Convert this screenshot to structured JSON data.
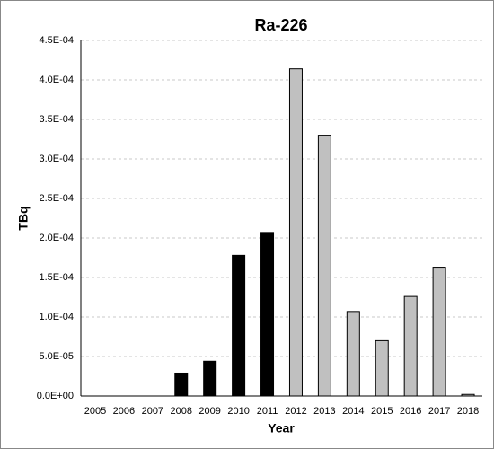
{
  "chart_data": {
    "type": "bar",
    "title": "Ra-226",
    "x_label": "Year",
    "y_label": "TBq",
    "categories": [
      "2005",
      "2006",
      "2007",
      "2008",
      "2009",
      "2010",
      "2011",
      "2012",
      "2013",
      "2014",
      "2015",
      "2016",
      "2017",
      "2018"
    ],
    "values": [
      0,
      0,
      0,
      2.9e-05,
      4.4e-05,
      0.000178,
      0.000207,
      0.000414,
      0.00033,
      0.000107,
      7e-05,
      0.000126,
      0.000163,
      2e-06
    ],
    "colors": [
      "#000000",
      "#000000",
      "#000000",
      "#000000",
      "#000000",
      "#000000",
      "#000000",
      "#c0c0c0",
      "#c0c0c0",
      "#c0c0c0",
      "#c0c0c0",
      "#c0c0c0",
      "#c0c0c0",
      "#c0c0c0"
    ],
    "ylim": [
      0,
      0.00045
    ],
    "yticks": [
      {
        "value": 0,
        "label": "0.0E+00"
      },
      {
        "value": 5e-05,
        "label": "5.0E-05"
      },
      {
        "value": 0.0001,
        "label": "1.0E-04"
      },
      {
        "value": 0.00015,
        "label": "1.5E-04"
      },
      {
        "value": 0.0002,
        "label": "2.0E-04"
      },
      {
        "value": 0.00025,
        "label": "2.5E-04"
      },
      {
        "value": 0.0003,
        "label": "3.0E-04"
      },
      {
        "value": 0.00035,
        "label": "3.5E-04"
      },
      {
        "value": 0.0004,
        "label": "4.0E-04"
      },
      {
        "value": 0.00045,
        "label": "4.5E-04"
      }
    ],
    "grid": true
  }
}
